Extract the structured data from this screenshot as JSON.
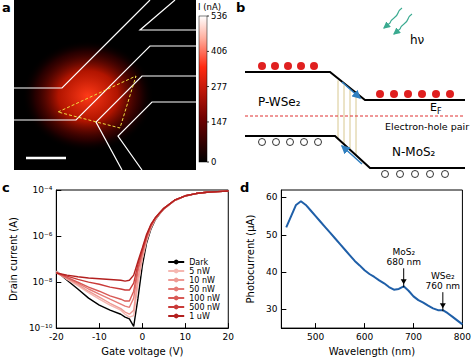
{
  "panel_labels": [
    "a",
    "b",
    "c",
    "d"
  ],
  "photocurrent_map": {
    "colorbar_label": "I (nA)",
    "colorbar_range": [
      0,
      536
    ],
    "colorbar_ticks": [
      0,
      147,
      277,
      406,
      536
    ]
  },
  "band_diagram": {
    "photon": "hν",
    "left": "P-WSe₂",
    "fermi_level": {
      "symbol": "E",
      "subscript": "F"
    },
    "pair": "Electron-hole pair",
    "right": "N-MoS₂"
  },
  "chart_data": [
    {
      "type": "line",
      "x_label": "Gate voltage (V)",
      "y_label": "Drain current (A)",
      "log": "y",
      "grid": false,
      "legend": "lower right",
      "xlim": [
        -20,
        20
      ],
      "xticks": [
        -20,
        -10,
        0,
        10,
        20
      ],
      "ylim": [
        1e-10,
        0.0001
      ],
      "yticks": [
        {
          "value": 1e-10,
          "label": "10⁻¹⁰"
        },
        {
          "value": 1e-08,
          "label": "10⁻⁸"
        },
        {
          "value": 1e-06,
          "label": "10⁻⁶"
        },
        {
          "value": 0.0001,
          "label": "10⁻⁴"
        }
      ],
      "x": [
        -20,
        -17.5,
        -15,
        -12.5,
        -10,
        -7.5,
        -5,
        -4,
        -3,
        -2,
        -1,
        0,
        1,
        2,
        3,
        4,
        5,
        7.5,
        10,
        12.5,
        15,
        17.5,
        20
      ],
      "series": [
        {
          "name": "Dark",
          "color": "#000000",
          "values": [
            3e-08,
            1.2e-08,
            5e-09,
            2e-09,
            1e-09,
            6e-10,
            4e-10,
            3e-10,
            2.5e-10,
            1.2e-10,
            2e-09,
            5e-08,
            5e-07,
            2e-06,
            5e-06,
            9e-06,
            1.5e-05,
            3.5e-05,
            5.5e-05,
            7e-05,
            8e-05,
            8.5e-05,
            9e-05
          ]
        },
        {
          "name": "5 nW",
          "color": "#f5b7b1",
          "values": [
            3e-08,
            1.3e-08,
            7e-09,
            3.5e-09,
            1.8e-09,
            1e-09,
            6e-10,
            4e-10,
            3e-10,
            3.5e-10,
            8e-09,
            1e-07,
            6e-07,
            2.2e-06,
            5.2e-06,
            9.2e-06,
            1.5e-05,
            3.5e-05,
            5.5e-05,
            7e-05,
            8e-05,
            8.5e-05,
            9e-05
          ]
        },
        {
          "name": "10 nW",
          "color": "#ee9a94",
          "values": [
            2.5e-08,
            1.4e-08,
            8e-09,
            4e-09,
            2.2e-09,
            1.2e-09,
            7e-10,
            5e-10,
            4e-10,
            6e-10,
            1.5e-08,
            1.2e-07,
            7e-07,
            2.4e-06,
            5.4e-06,
            9.4e-06,
            1.5e-05,
            3.5e-05,
            5.5e-05,
            7e-05,
            8e-05,
            8.5e-05,
            9e-05
          ]
        },
        {
          "name": "50 nW",
          "color": "#e57b76",
          "values": [
            2.5e-08,
            1.5e-08,
            9e-09,
            5e-09,
            3e-09,
            1.8e-09,
            1.1e-09,
            9e-10,
            8e-10,
            2e-09,
            3e-08,
            1.8e-07,
            8e-07,
            2.6e-06,
            5.6e-06,
            9.6e-06,
            1.5e-05,
            3.5e-05,
            5.5e-05,
            7e-05,
            8e-05,
            8.5e-05,
            9e-05
          ]
        },
        {
          "name": "100 nW",
          "color": "#d85a56",
          "values": [
            2.5e-08,
            1.6e-08,
            1e-08,
            6e-09,
            4e-09,
            2.5e-09,
            1.8e-09,
            1.5e-09,
            1.5e-09,
            4e-09,
            4e-08,
            2e-07,
            9e-07,
            2.8e-06,
            5.8e-06,
            9.8e-06,
            1.6e-05,
            3.6e-05,
            5.6e-05,
            7e-05,
            8e-05,
            8.5e-05,
            9e-05
          ]
        },
        {
          "name": "500 nW",
          "color": "#c93a38",
          "values": [
            2.5e-08,
            1.8e-08,
            1.3e-08,
            1e-08,
            8e-09,
            6e-09,
            5e-09,
            4.5e-09,
            4.5e-09,
            9e-09,
            6e-08,
            2.5e-07,
            1e-06,
            3e-06,
            6e-06,
            1e-05,
            1.6e-05,
            3.6e-05,
            5.6e-05,
            7e-05,
            8e-05,
            8.5e-05,
            9e-05
          ]
        },
        {
          "name": "1 uW",
          "color": "#b3201f",
          "values": [
            2.5e-08,
            2e-08,
            1.7e-08,
            1.5e-08,
            1.4e-08,
            1.3e-08,
            1.2e-08,
            1.1e-08,
            1.2e-08,
            2e-08,
            8e-08,
            3e-07,
            1.2e-06,
            3.2e-06,
            6.2e-06,
            1e-05,
            1.6e-05,
            3.6e-05,
            5.6e-05,
            7e-05,
            8e-05,
            8.5e-05,
            9e-05
          ]
        }
      ]
    },
    {
      "type": "line",
      "x_label": "Wavelength (nm)",
      "y_label": "Photocurrent (μA)",
      "grid": false,
      "xlim": [
        430,
        800
      ],
      "xticks": [
        500,
        600,
        700,
        800
      ],
      "ylim": [
        25,
        62
      ],
      "yticks": [
        30,
        40,
        50,
        60
      ],
      "color": "#1f5fa8",
      "x": [
        440,
        450,
        460,
        470,
        480,
        490,
        500,
        510,
        520,
        530,
        540,
        550,
        560,
        570,
        580,
        590,
        600,
        610,
        620,
        630,
        640,
        650,
        660,
        670,
        680,
        690,
        700,
        710,
        720,
        730,
        740,
        750,
        760,
        770,
        780,
        790,
        800
      ],
      "values": [
        52,
        55,
        58,
        59,
        58,
        56.5,
        55,
        53.5,
        52,
        50.5,
        49,
        47.5,
        46,
        44.5,
        43,
        41.8,
        40.5,
        39.5,
        38.7,
        37.8,
        37,
        36,
        35.3,
        35.5,
        36.2,
        35,
        33.5,
        32.5,
        31.8,
        31,
        30.3,
        29.8,
        29.8,
        29,
        28,
        27,
        26
      ],
      "annotations": [
        {
          "text": [
            "MoS₂",
            "680 nm"
          ],
          "x": 680,
          "y": 36.2
        },
        {
          "text": [
            "WSe₂",
            "760 nm"
          ],
          "x": 760,
          "y": 29.8
        }
      ]
    }
  ]
}
